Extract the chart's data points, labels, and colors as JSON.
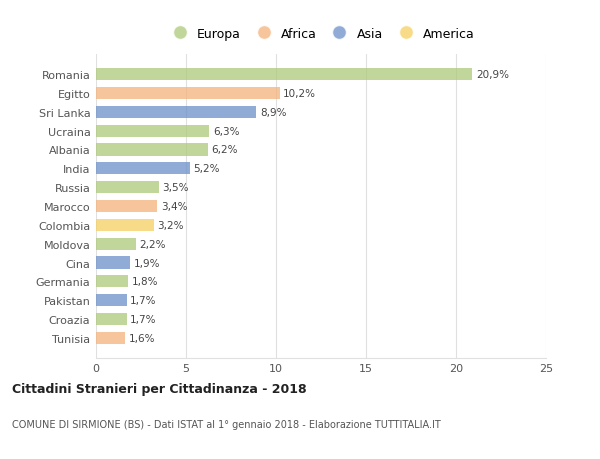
{
  "categories": [
    "Romania",
    "Egitto",
    "Sri Lanka",
    "Ucraina",
    "Albania",
    "India",
    "Russia",
    "Marocco",
    "Colombia",
    "Moldova",
    "Cina",
    "Germania",
    "Pakistan",
    "Croazia",
    "Tunisia"
  ],
  "values": [
    20.9,
    10.2,
    8.9,
    6.3,
    6.2,
    5.2,
    3.5,
    3.4,
    3.2,
    2.2,
    1.9,
    1.8,
    1.7,
    1.7,
    1.6
  ],
  "labels": [
    "20,9%",
    "10,2%",
    "8,9%",
    "6,3%",
    "6,2%",
    "5,2%",
    "3,5%",
    "3,4%",
    "3,2%",
    "2,2%",
    "1,9%",
    "1,8%",
    "1,7%",
    "1,7%",
    "1,6%"
  ],
  "continents": [
    "Europa",
    "Africa",
    "Asia",
    "Europa",
    "Europa",
    "Asia",
    "Europa",
    "Africa",
    "America",
    "Europa",
    "Asia",
    "Europa",
    "Asia",
    "Europa",
    "Africa"
  ],
  "bar_colors": [
    "#adc97a",
    "#f5b27a",
    "#6b8fc7",
    "#adc97a",
    "#adc97a",
    "#6b8fc7",
    "#adc97a",
    "#f5b27a",
    "#f5d060",
    "#adc97a",
    "#6b8fc7",
    "#adc97a",
    "#6b8fc7",
    "#adc97a",
    "#f5b27a"
  ],
  "legend_labels": [
    "Europa",
    "Africa",
    "Asia",
    "America"
  ],
  "legend_colors": [
    "#adc97a",
    "#f5b27a",
    "#6b8fc7",
    "#f5d060"
  ],
  "title": "Cittadini Stranieri per Cittadinanza - 2018",
  "subtitle": "COMUNE DI SIRMIONE (BS) - Dati ISTAT al 1° gennaio 2018 - Elaborazione TUTTITALIA.IT",
  "xlim": [
    0,
    25
  ],
  "xticks": [
    0,
    5,
    10,
    15,
    20,
    25
  ],
  "background_color": "#ffffff",
  "grid_color": "#e0e0e0",
  "bar_alpha": 0.75,
  "bar_height": 0.65
}
